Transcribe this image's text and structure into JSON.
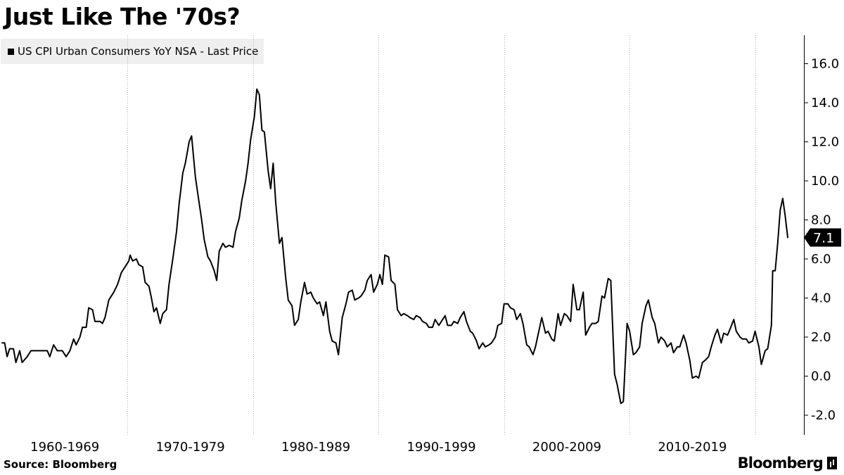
{
  "title": "Just Like The '70s?",
  "source": "Source: Bloomberg",
  "brand": "Bloomberg",
  "chart_data": {
    "type": "line",
    "title": "Just Like The '70s?",
    "xlabel": "",
    "ylabel": "",
    "ylim": [
      -3,
      16.5
    ],
    "xlim": [
      1960,
      2022.6
    ],
    "y_axis_side": "right",
    "y_ticks": [
      "16.0",
      "14.0",
      "12.0",
      "10.0",
      "8.0",
      "6.0",
      "4.0",
      "2.0",
      "0.0",
      "-2.0"
    ],
    "y_tick_values": [
      16,
      14,
      12,
      10,
      8,
      6,
      4,
      2,
      0,
      -2
    ],
    "x_categories": [
      "1960-1969",
      "1970-1979",
      "1980-1989",
      "1990-1999",
      "2000-2009",
      "2010-2019"
    ],
    "x_category_starts": [
      1960,
      1970,
      1980,
      1990,
      2000,
      2010
    ],
    "decade_separators": [
      1970,
      1980,
      1990,
      2000,
      2010,
      2020
    ],
    "grid": "vertical-dotted",
    "legend_position": "top-left",
    "last_value_label": "7.1",
    "series": [
      {
        "name": "US CPI Urban Consumers YoY NSA - Last Price",
        "color": "#000000",
        "points": [
          [
            1960.0,
            1.7
          ],
          [
            1960.2,
            1.7
          ],
          [
            1960.4,
            1.0
          ],
          [
            1960.6,
            1.4
          ],
          [
            1960.9,
            1.4
          ],
          [
            1961.1,
            0.7
          ],
          [
            1961.4,
            1.3
          ],
          [
            1961.6,
            0.7
          ],
          [
            1962.0,
            1.0
          ],
          [
            1962.3,
            1.3
          ],
          [
            1962.8,
            1.3
          ],
          [
            1963.3,
            1.3
          ],
          [
            1963.6,
            1.3
          ],
          [
            1963.8,
            1.0
          ],
          [
            1964.1,
            1.6
          ],
          [
            1964.4,
            1.3
          ],
          [
            1964.8,
            1.3
          ],
          [
            1965.1,
            1.0
          ],
          [
            1965.4,
            1.3
          ],
          [
            1965.7,
            1.9
          ],
          [
            1965.9,
            1.6
          ],
          [
            1966.2,
            2.0
          ],
          [
            1966.4,
            2.5
          ],
          [
            1966.7,
            2.5
          ],
          [
            1966.9,
            3.5
          ],
          [
            1967.2,
            3.4
          ],
          [
            1967.4,
            2.8
          ],
          [
            1967.8,
            2.8
          ],
          [
            1968.0,
            2.7
          ],
          [
            1968.2,
            3.0
          ],
          [
            1968.5,
            3.9
          ],
          [
            1968.9,
            4.3
          ],
          [
            1969.2,
            4.7
          ],
          [
            1969.5,
            5.3
          ],
          [
            1969.9,
            5.7
          ],
          [
            1970.1,
            5.9
          ],
          [
            1970.2,
            6.2
          ],
          [
            1970.4,
            5.9
          ],
          [
            1970.7,
            6.0
          ],
          [
            1970.9,
            5.7
          ],
          [
            1971.2,
            5.6
          ],
          [
            1971.4,
            4.8
          ],
          [
            1971.7,
            4.6
          ],
          [
            1971.9,
            4.0
          ],
          [
            1972.1,
            3.3
          ],
          [
            1972.3,
            3.5
          ],
          [
            1972.6,
            2.7
          ],
          [
            1972.8,
            3.2
          ],
          [
            1973.1,
            3.4
          ],
          [
            1973.3,
            4.7
          ],
          [
            1973.6,
            6.0
          ],
          [
            1973.9,
            7.4
          ],
          [
            1974.1,
            8.8
          ],
          [
            1974.4,
            10.4
          ],
          [
            1974.6,
            10.9
          ],
          [
            1974.9,
            12.0
          ],
          [
            1975.1,
            12.3
          ],
          [
            1975.4,
            10.2
          ],
          [
            1975.6,
            9.3
          ],
          [
            1975.9,
            8.0
          ],
          [
            1976.1,
            7.0
          ],
          [
            1976.4,
            6.1
          ],
          [
            1976.6,
            5.9
          ],
          [
            1976.9,
            5.4
          ],
          [
            1977.1,
            4.9
          ],
          [
            1977.3,
            6.4
          ],
          [
            1977.6,
            6.8
          ],
          [
            1977.8,
            6.6
          ],
          [
            1978.1,
            6.7
          ],
          [
            1978.4,
            6.6
          ],
          [
            1978.6,
            7.4
          ],
          [
            1978.9,
            8.1
          ],
          [
            1979.1,
            9.0
          ],
          [
            1979.4,
            10.0
          ],
          [
            1979.6,
            10.9
          ],
          [
            1979.8,
            12.1
          ],
          [
            1980.1,
            13.3
          ],
          [
            1980.3,
            14.7
          ],
          [
            1980.5,
            14.4
          ],
          [
            1980.7,
            12.6
          ],
          [
            1980.9,
            12.5
          ],
          [
            1981.2,
            10.5
          ],
          [
            1981.4,
            9.6
          ],
          [
            1981.6,
            10.9
          ],
          [
            1981.8,
            8.9
          ],
          [
            1982.1,
            6.8
          ],
          [
            1982.3,
            7.1
          ],
          [
            1982.6,
            5.0
          ],
          [
            1982.8,
            3.9
          ],
          [
            1983.1,
            3.6
          ],
          [
            1983.3,
            2.6
          ],
          [
            1983.6,
            2.9
          ],
          [
            1983.8,
            3.8
          ],
          [
            1984.1,
            4.8
          ],
          [
            1984.3,
            4.2
          ],
          [
            1984.6,
            4.3
          ],
          [
            1984.8,
            4.0
          ],
          [
            1985.1,
            3.7
          ],
          [
            1985.3,
            3.8
          ],
          [
            1985.6,
            3.1
          ],
          [
            1985.8,
            3.8
          ],
          [
            1986.1,
            2.3
          ],
          [
            1986.3,
            1.8
          ],
          [
            1986.6,
            1.7
          ],
          [
            1986.8,
            1.1
          ],
          [
            1987.1,
            3.0
          ],
          [
            1987.4,
            3.7
          ],
          [
            1987.6,
            4.3
          ],
          [
            1987.9,
            4.4
          ],
          [
            1988.1,
            3.9
          ],
          [
            1988.4,
            4.0
          ],
          [
            1988.6,
            4.1
          ],
          [
            1988.9,
            4.4
          ],
          [
            1989.1,
            4.9
          ],
          [
            1989.4,
            5.2
          ],
          [
            1989.6,
            4.3
          ],
          [
            1989.9,
            4.7
          ],
          [
            1990.1,
            5.2
          ],
          [
            1990.3,
            4.7
          ],
          [
            1990.5,
            6.2
          ],
          [
            1990.8,
            6.1
          ],
          [
            1991.0,
            4.9
          ],
          [
            1991.3,
            4.7
          ],
          [
            1991.5,
            3.4
          ],
          [
            1991.8,
            3.1
          ],
          [
            1992.0,
            3.2
          ],
          [
            1992.3,
            3.1
          ],
          [
            1992.5,
            3.0
          ],
          [
            1992.8,
            2.9
          ],
          [
            1993.0,
            3.1
          ],
          [
            1993.3,
            3.0
          ],
          [
            1993.5,
            2.8
          ],
          [
            1993.8,
            2.7
          ],
          [
            1994.0,
            2.5
          ],
          [
            1994.3,
            2.5
          ],
          [
            1994.5,
            2.9
          ],
          [
            1994.8,
            2.6
          ],
          [
            1995.0,
            2.8
          ],
          [
            1995.3,
            3.1
          ],
          [
            1995.5,
            2.6
          ],
          [
            1995.8,
            2.6
          ],
          [
            1996.0,
            2.8
          ],
          [
            1996.3,
            2.7
          ],
          [
            1996.5,
            3.0
          ],
          [
            1996.8,
            3.3
          ],
          [
            1997.0,
            2.8
          ],
          [
            1997.3,
            2.3
          ],
          [
            1997.5,
            2.2
          ],
          [
            1997.8,
            1.8
          ],
          [
            1998.0,
            1.4
          ],
          [
            1998.3,
            1.7
          ],
          [
            1998.5,
            1.5
          ],
          [
            1998.8,
            1.6
          ],
          [
            1999.0,
            1.7
          ],
          [
            1999.3,
            2.0
          ],
          [
            1999.5,
            2.6
          ],
          [
            1999.8,
            2.7
          ],
          [
            2000.0,
            3.7
          ],
          [
            2000.3,
            3.7
          ],
          [
            2000.5,
            3.5
          ],
          [
            2000.8,
            3.4
          ],
          [
            2001.0,
            2.9
          ],
          [
            2001.3,
            3.2
          ],
          [
            2001.5,
            2.7
          ],
          [
            2001.8,
            1.6
          ],
          [
            2002.0,
            1.5
          ],
          [
            2002.3,
            1.1
          ],
          [
            2002.5,
            1.5
          ],
          [
            2002.8,
            2.4
          ],
          [
            2003.0,
            3.0
          ],
          [
            2003.3,
            2.2
          ],
          [
            2003.5,
            2.3
          ],
          [
            2003.8,
            1.9
          ],
          [
            2004.0,
            1.8
          ],
          [
            2004.3,
            3.2
          ],
          [
            2004.5,
            2.6
          ],
          [
            2004.8,
            3.2
          ],
          [
            2005.0,
            3.1
          ],
          [
            2005.3,
            2.8
          ],
          [
            2005.5,
            4.7
          ],
          [
            2005.8,
            3.4
          ],
          [
            2006.0,
            3.4
          ],
          [
            2006.3,
            4.3
          ],
          [
            2006.5,
            2.1
          ],
          [
            2006.8,
            2.5
          ],
          [
            2007.0,
            2.7
          ],
          [
            2007.3,
            2.7
          ],
          [
            2007.5,
            2.8
          ],
          [
            2007.8,
            4.1
          ],
          [
            2008.0,
            4.0
          ],
          [
            2008.3,
            5.0
          ],
          [
            2008.5,
            4.9
          ],
          [
            2008.8,
            0.1
          ],
          [
            2009.0,
            -0.4
          ],
          [
            2009.3,
            -1.4
          ],
          [
            2009.5,
            -1.3
          ],
          [
            2009.8,
            2.7
          ],
          [
            2010.0,
            2.3
          ],
          [
            2010.3,
            1.1
          ],
          [
            2010.5,
            1.2
          ],
          [
            2010.8,
            1.5
          ],
          [
            2011.0,
            2.7
          ],
          [
            2011.3,
            3.6
          ],
          [
            2011.5,
            3.9
          ],
          [
            2011.8,
            3.0
          ],
          [
            2012.0,
            2.7
          ],
          [
            2012.3,
            1.7
          ],
          [
            2012.5,
            2.0
          ],
          [
            2012.8,
            1.8
          ],
          [
            2013.0,
            1.5
          ],
          [
            2013.3,
            1.7
          ],
          [
            2013.5,
            1.2
          ],
          [
            2013.8,
            1.5
          ],
          [
            2014.0,
            1.5
          ],
          [
            2014.3,
            2.1
          ],
          [
            2014.5,
            1.7
          ],
          [
            2014.8,
            0.8
          ],
          [
            2015.0,
            -0.1
          ],
          [
            2015.3,
            0.0
          ],
          [
            2015.5,
            -0.1
          ],
          [
            2015.8,
            0.7
          ],
          [
            2016.0,
            0.8
          ],
          [
            2016.3,
            1.0
          ],
          [
            2016.5,
            1.5
          ],
          [
            2016.8,
            2.1
          ],
          [
            2017.0,
            2.4
          ],
          [
            2017.3,
            1.7
          ],
          [
            2017.5,
            2.2
          ],
          [
            2017.8,
            2.1
          ],
          [
            2018.0,
            2.4
          ],
          [
            2018.3,
            2.9
          ],
          [
            2018.5,
            2.3
          ],
          [
            2018.8,
            2.0
          ],
          [
            2019.0,
            1.9
          ],
          [
            2019.3,
            1.9
          ],
          [
            2019.5,
            1.7
          ],
          [
            2019.8,
            1.8
          ],
          [
            2020.0,
            2.3
          ],
          [
            2020.3,
            1.5
          ],
          [
            2020.5,
            0.6
          ],
          [
            2020.8,
            1.3
          ],
          [
            2021.0,
            1.4
          ],
          [
            2021.3,
            2.6
          ],
          [
            2021.4,
            5.4
          ],
          [
            2021.6,
            5.4
          ],
          [
            2021.8,
            6.8
          ],
          [
            2022.0,
            8.5
          ],
          [
            2022.2,
            9.1
          ],
          [
            2022.4,
            8.2
          ],
          [
            2022.6,
            7.1
          ]
        ]
      }
    ]
  }
}
